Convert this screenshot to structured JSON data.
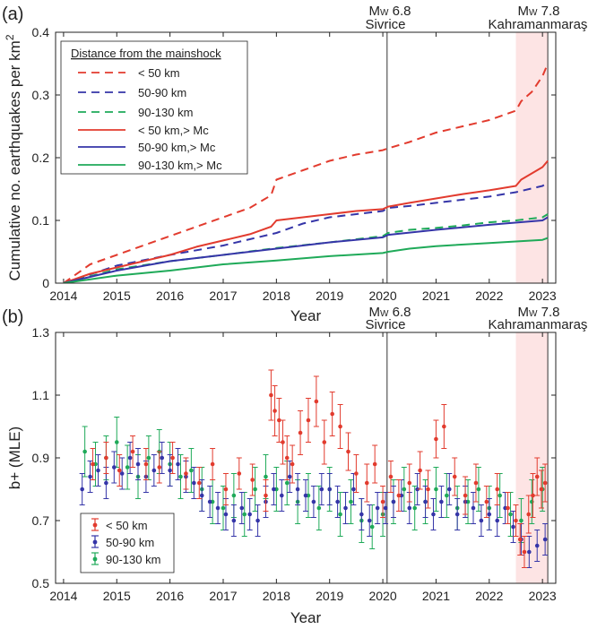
{
  "colors": {
    "red": "#e23b2e",
    "blue": "#3535a8",
    "green": "#1faa59",
    "shade": "#fde4e4",
    "event_line": "#333333"
  },
  "chart_data": [
    {
      "type": "line",
      "panel_label": "(a)",
      "xlabel": "Year",
      "ylabel": "Cumulative no. earthquakes per km",
      "ylabel_sup": "2",
      "xlim": [
        2013.85,
        2023.25
      ],
      "ylim": [
        0,
        0.4
      ],
      "xticks": [
        2014,
        2015,
        2016,
        2017,
        2018,
        2019,
        2020,
        2021,
        2022,
        2023
      ],
      "yticks": [
        0,
        0.1,
        0.2,
        0.3,
        0.4
      ],
      "ytick_labels": [
        "0",
        "0.1",
        "0.2",
        "0.3",
        "0.4"
      ],
      "shaded_region": [
        2022.5,
        2023.1
      ],
      "events": [
        {
          "x": 2020.08,
          "mag_prefix": "M",
          "mag_sub": "W",
          "mag_value": " 6.8",
          "name": "Sivrice"
        },
        {
          "x": 2023.1,
          "mag_prefix": "M",
          "mag_sub": "W",
          "mag_value": " 7.8",
          "name": "Kahramanmaraş"
        }
      ],
      "legend": {
        "title": "Distance from the mainshock",
        "placement": "top-left"
      },
      "series": [
        {
          "name": "< 50 km",
          "style": "dashed",
          "color": "red",
          "x": [
            2014,
            2014.5,
            2015,
            2015.5,
            2016,
            2016.5,
            2017,
            2017.5,
            2017.9,
            2018,
            2018.5,
            2019,
            2019.5,
            2020,
            2020.1,
            2020.5,
            2021,
            2021.5,
            2022,
            2022.5,
            2022.6,
            2022.8,
            2023,
            2023.1
          ],
          "y": [
            0,
            0.03,
            0.045,
            0.06,
            0.075,
            0.09,
            0.105,
            0.12,
            0.14,
            0.165,
            0.18,
            0.195,
            0.205,
            0.212,
            0.215,
            0.225,
            0.24,
            0.25,
            0.26,
            0.275,
            0.29,
            0.305,
            0.33,
            0.35
          ]
        },
        {
          "name": "50-90 km",
          "style": "dashed",
          "color": "blue",
          "x": [
            2014,
            2015,
            2016,
            2017,
            2017.5,
            2018,
            2018.5,
            2019,
            2019.5,
            2020,
            2020.1,
            2020.5,
            2021,
            2021.5,
            2022,
            2022.5,
            2023,
            2023.1
          ],
          "y": [
            0,
            0.028,
            0.045,
            0.06,
            0.07,
            0.08,
            0.095,
            0.105,
            0.11,
            0.115,
            0.12,
            0.123,
            0.128,
            0.133,
            0.138,
            0.145,
            0.155,
            0.16
          ]
        },
        {
          "name": "90-130 km",
          "style": "dashed",
          "color": "green",
          "x": [
            2014,
            2015,
            2016,
            2017,
            2018,
            2019,
            2020,
            2020.1,
            2020.5,
            2021,
            2021.5,
            2022,
            2022.5,
            2023,
            2023.1
          ],
          "y": [
            0,
            0.022,
            0.035,
            0.045,
            0.056,
            0.065,
            0.075,
            0.08,
            0.085,
            0.088,
            0.092,
            0.097,
            0.1,
            0.105,
            0.11
          ]
        },
        {
          "name": "< 50 km,> Mc",
          "style": "solid",
          "color": "red",
          "x": [
            2014,
            2014.5,
            2015,
            2015.5,
            2016,
            2016.5,
            2017,
            2017.5,
            2017.9,
            2018,
            2018.5,
            2019,
            2019.5,
            2020,
            2020.1,
            2020.5,
            2021,
            2021.5,
            2022,
            2022.5,
            2022.6,
            2022.8,
            2023,
            2023.1
          ],
          "y": [
            0,
            0.015,
            0.025,
            0.035,
            0.045,
            0.058,
            0.068,
            0.078,
            0.09,
            0.1,
            0.105,
            0.11,
            0.115,
            0.118,
            0.122,
            0.128,
            0.135,
            0.142,
            0.148,
            0.155,
            0.165,
            0.175,
            0.185,
            0.195
          ]
        },
        {
          "name": "50-90 km,> Mc",
          "style": "solid",
          "color": "blue",
          "x": [
            2014,
            2015,
            2016,
            2017,
            2018,
            2019,
            2020,
            2020.1,
            2021,
            2022,
            2023,
            2023.1
          ],
          "y": [
            0,
            0.02,
            0.035,
            0.045,
            0.055,
            0.065,
            0.073,
            0.077,
            0.085,
            0.093,
            0.1,
            0.105
          ]
        },
        {
          "name": "90-130 km,> Mc",
          "style": "solid",
          "color": "green",
          "x": [
            2014,
            2015,
            2016,
            2017,
            2018,
            2019,
            2020,
            2020.1,
            2020.5,
            2021,
            2022,
            2023,
            2023.1
          ],
          "y": [
            0,
            0.012,
            0.02,
            0.03,
            0.036,
            0.043,
            0.048,
            0.05,
            0.055,
            0.059,
            0.064,
            0.069,
            0.072
          ]
        }
      ]
    },
    {
      "type": "scatter",
      "panel_label": "(b)",
      "xlabel": "Year",
      "ylabel": "b+ (MLE)",
      "xlim": [
        2013.85,
        2023.25
      ],
      "ylim": [
        0.5,
        1.3
      ],
      "xticks": [
        2014,
        2015,
        2016,
        2017,
        2018,
        2019,
        2020,
        2021,
        2022,
        2023
      ],
      "yticks": [
        0.5,
        0.7,
        0.9,
        1.1,
        1.3
      ],
      "ytick_labels": [
        "0.5",
        "0.7",
        "0.9",
        "1.1",
        "1.3"
      ],
      "shaded_region": [
        2022.5,
        2023.1
      ],
      "events": [
        {
          "x": 2020.08,
          "mag_prefix": "M",
          "mag_sub": "W",
          "mag_value": " 6.8",
          "name": "Sivrice"
        },
        {
          "x": 2023.1,
          "mag_prefix": "M",
          "mag_sub": "W",
          "mag_value": " 7.8",
          "name": "Kahramanmaraş"
        }
      ],
      "legend": {
        "placement": "bottom-left"
      },
      "series": [
        {
          "name": "< 50 km",
          "color": "red",
          "x": [
            2014.55,
            2014.8,
            2015.05,
            2015.3,
            2015.55,
            2015.8,
            2016.05,
            2016.3,
            2016.55,
            2016.8,
            2017.05,
            2017.3,
            2017.55,
            2017.8,
            2017.9,
            2017.97,
            2018.05,
            2018.12,
            2018.2,
            2018.3,
            2018.45,
            2018.6,
            2018.75,
            2018.9,
            2019.05,
            2019.2,
            2019.35,
            2019.5,
            2019.7,
            2019.85,
            2020.0,
            2020.15,
            2020.3,
            2020.5,
            2020.7,
            2020.85,
            2021.0,
            2021.15,
            2021.35,
            2021.55,
            2021.75,
            2021.95,
            2022.15,
            2022.35,
            2022.5,
            2022.58,
            2022.66,
            2022.74,
            2022.82,
            2022.9,
            2022.98,
            2023.05
          ],
          "y": [
            0.88,
            0.9,
            0.86,
            0.92,
            0.88,
            0.87,
            0.9,
            0.85,
            0.82,
            0.88,
            0.8,
            0.85,
            0.83,
            0.78,
            1.1,
            1.05,
            1.02,
            0.95,
            0.9,
            0.88,
            0.98,
            1.02,
            1.08,
            0.95,
            1.04,
            1.0,
            0.92,
            0.85,
            0.82,
            0.88,
            0.76,
            0.84,
            0.78,
            0.82,
            0.86,
            0.8,
            0.96,
            1.0,
            0.84,
            0.78,
            0.82,
            0.76,
            0.8,
            0.74,
            0.7,
            0.64,
            0.6,
            0.72,
            0.78,
            0.84,
            0.8,
            0.82
          ],
          "err": [
            0.05,
            0.05,
            0.05,
            0.05,
            0.05,
            0.05,
            0.05,
            0.05,
            0.05,
            0.05,
            0.05,
            0.05,
            0.05,
            0.05,
            0.08,
            0.08,
            0.07,
            0.07,
            0.07,
            0.06,
            0.07,
            0.07,
            0.08,
            0.07,
            0.07,
            0.07,
            0.06,
            0.06,
            0.06,
            0.06,
            0.05,
            0.05,
            0.05,
            0.06,
            0.06,
            0.06,
            0.06,
            0.07,
            0.06,
            0.06,
            0.06,
            0.05,
            0.05,
            0.05,
            0.05,
            0.05,
            0.05,
            0.06,
            0.07,
            0.06,
            0.06,
            0.06
          ]
        },
        {
          "name": "50-90 km",
          "color": "blue",
          "x": [
            2014.35,
            2014.5,
            2014.65,
            2014.8,
            2014.95,
            2015.1,
            2015.25,
            2015.4,
            2015.55,
            2015.7,
            2015.85,
            2016.0,
            2016.15,
            2016.3,
            2016.45,
            2016.6,
            2016.75,
            2016.9,
            2017.05,
            2017.2,
            2017.35,
            2017.5,
            2017.65,
            2017.8,
            2017.95,
            2018.1,
            2018.25,
            2018.4,
            2018.55,
            2018.7,
            2018.85,
            2019.0,
            2019.15,
            2019.3,
            2019.45,
            2019.6,
            2019.75,
            2019.9,
            2020.05,
            2020.2,
            2020.35,
            2020.5,
            2020.65,
            2020.8,
            2020.95,
            2021.1,
            2021.25,
            2021.4,
            2021.55,
            2021.7,
            2021.85,
            2022.0,
            2022.15,
            2022.3,
            2022.45,
            2022.6,
            2022.75,
            2022.9,
            2023.05
          ],
          "y": [
            0.8,
            0.84,
            0.86,
            0.82,
            0.87,
            0.85,
            0.9,
            0.88,
            0.84,
            0.86,
            0.9,
            0.86,
            0.88,
            0.84,
            0.82,
            0.78,
            0.76,
            0.74,
            0.72,
            0.7,
            0.74,
            0.72,
            0.7,
            0.76,
            0.8,
            0.78,
            0.84,
            0.8,
            0.78,
            0.76,
            0.8,
            0.8,
            0.76,
            0.74,
            0.8,
            0.72,
            0.7,
            0.74,
            0.74,
            0.76,
            0.78,
            0.74,
            0.8,
            0.76,
            0.72,
            0.76,
            0.8,
            0.72,
            0.76,
            0.74,
            0.7,
            0.72,
            0.7,
            0.74,
            0.68,
            0.64,
            0.6,
            0.62,
            0.64
          ],
          "err": [
            0.05,
            0.05,
            0.05,
            0.05,
            0.05,
            0.05,
            0.05,
            0.05,
            0.05,
            0.05,
            0.05,
            0.05,
            0.05,
            0.05,
            0.05,
            0.05,
            0.05,
            0.05,
            0.05,
            0.05,
            0.05,
            0.05,
            0.05,
            0.05,
            0.05,
            0.05,
            0.05,
            0.05,
            0.05,
            0.05,
            0.05,
            0.05,
            0.05,
            0.05,
            0.05,
            0.05,
            0.05,
            0.05,
            0.05,
            0.05,
            0.05,
            0.05,
            0.05,
            0.05,
            0.05,
            0.05,
            0.05,
            0.05,
            0.05,
            0.05,
            0.05,
            0.05,
            0.05,
            0.05,
            0.05,
            0.05,
            0.05,
            0.05,
            0.05
          ]
        },
        {
          "name": "90-130 km",
          "color": "green",
          "x": [
            2014.4,
            2014.6,
            2014.8,
            2015.0,
            2015.2,
            2015.4,
            2015.6,
            2015.8,
            2016.0,
            2016.2,
            2016.4,
            2016.6,
            2016.8,
            2017.0,
            2017.2,
            2017.4,
            2017.6,
            2017.8,
            2018.0,
            2018.2,
            2018.4,
            2018.6,
            2018.8,
            2019.0,
            2019.2,
            2019.4,
            2019.6,
            2019.8,
            2020.0,
            2020.2,
            2020.4,
            2020.6,
            2020.8,
            2021.0,
            2021.2,
            2021.4,
            2021.6,
            2021.8,
            2022.0,
            2022.2,
            2022.4,
            2022.6,
            2022.8,
            2023.0
          ],
          "y": [
            0.92,
            0.88,
            0.9,
            0.95,
            0.87,
            0.84,
            0.9,
            0.92,
            0.88,
            0.84,
            0.86,
            0.8,
            0.76,
            0.74,
            0.78,
            0.72,
            0.8,
            0.84,
            0.8,
            0.82,
            0.76,
            0.78,
            0.74,
            0.8,
            0.72,
            0.76,
            0.7,
            0.68,
            0.72,
            0.76,
            0.8,
            0.74,
            0.76,
            0.8,
            0.78,
            0.74,
            0.76,
            0.8,
            0.74,
            0.78,
            0.72,
            0.7,
            0.76,
            0.8
          ],
          "err": [
            0.08,
            0.07,
            0.07,
            0.08,
            0.07,
            0.07,
            0.07,
            0.07,
            0.07,
            0.07,
            0.07,
            0.07,
            0.07,
            0.07,
            0.07,
            0.07,
            0.07,
            0.07,
            0.07,
            0.07,
            0.07,
            0.07,
            0.07,
            0.07,
            0.07,
            0.07,
            0.07,
            0.07,
            0.07,
            0.07,
            0.07,
            0.07,
            0.07,
            0.07,
            0.07,
            0.07,
            0.07,
            0.07,
            0.07,
            0.07,
            0.07,
            0.07,
            0.07,
            0.07
          ]
        }
      ]
    }
  ]
}
